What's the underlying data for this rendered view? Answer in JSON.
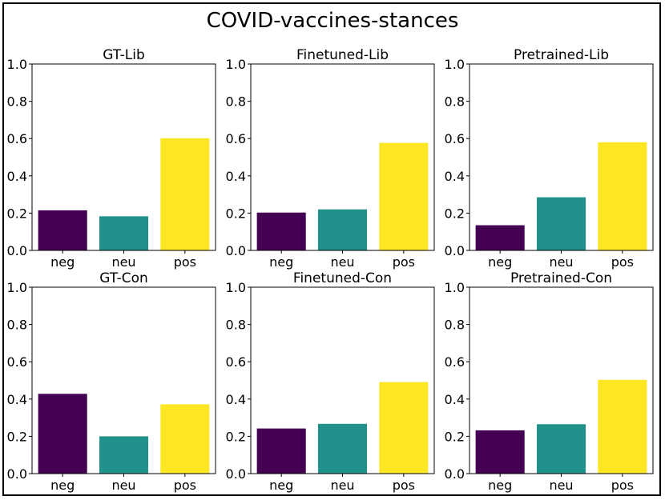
{
  "chart_data": {
    "type": "bar",
    "suptitle": "COVID-vaccines-stances",
    "categories": [
      "neg",
      "neu",
      "pos"
    ],
    "colors": [
      "#440154",
      "#21918c",
      "#fde725"
    ],
    "ylim": [
      0,
      1.0
    ],
    "yticks": [
      "0.0",
      "0.2",
      "0.4",
      "0.6",
      "0.8",
      "1.0"
    ],
    "panels": [
      {
        "title": "GT-Lib",
        "values": [
          0.215,
          0.183,
          0.602
        ]
      },
      {
        "title": "Finetuned-Lib",
        "values": [
          0.203,
          0.22,
          0.577
        ]
      },
      {
        "title": "Pretrained-Lib",
        "values": [
          0.135,
          0.285,
          0.58
        ]
      },
      {
        "title": "GT-Con",
        "values": [
          0.428,
          0.2,
          0.372
        ]
      },
      {
        "title": "Finetuned-Con",
        "values": [
          0.242,
          0.267,
          0.491
        ]
      },
      {
        "title": "Pretrained-Con",
        "values": [
          0.232,
          0.265,
          0.503
        ]
      }
    ]
  }
}
